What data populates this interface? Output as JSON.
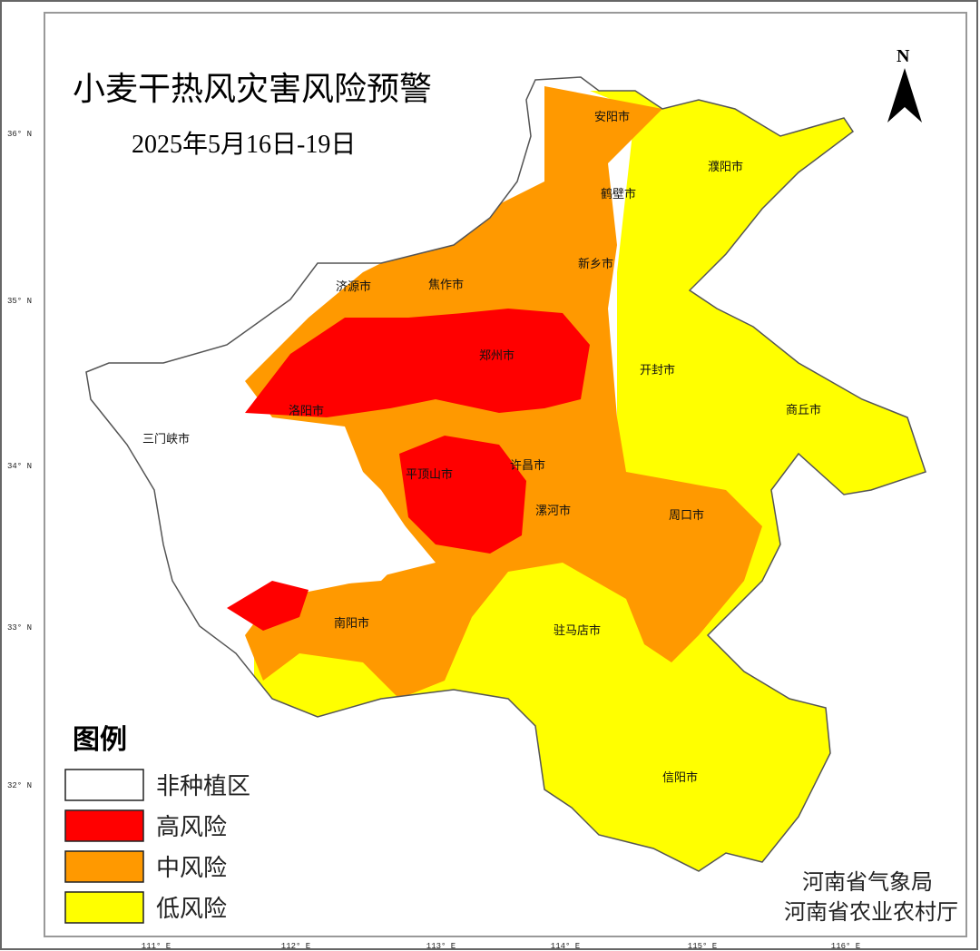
{
  "title": "小麦干热风灾害风险预警",
  "subtitle": "2025年5月16日-19日",
  "north_label": "N",
  "legend": {
    "title": "图例",
    "items": [
      {
        "label": "非种植区",
        "color": "#ffffff"
      },
      {
        "label": "高风险",
        "color": "#ff0000"
      },
      {
        "label": "中风险",
        "color": "#ff9900"
      },
      {
        "label": "低风险",
        "color": "#ffff00"
      }
    ]
  },
  "credits": [
    "河南省气象局",
    "河南省农业农村厅"
  ],
  "lon_ticks": [
    "111° E",
    "112° E",
    "113° E",
    "114° E",
    "115° E",
    "116° E"
  ],
  "lat_ticks": [
    "36° N",
    "35° N",
    "34° N",
    "33° N",
    "32° N"
  ],
  "cities": [
    "安阳市",
    "濮阳市",
    "鹤壁市",
    "新乡市",
    "焦作市",
    "济源市",
    "郑州市",
    "开封市",
    "商丘市",
    "洛阳市",
    "三门峡市",
    "平顶山市",
    "许昌市",
    "漯河市",
    "周口市",
    "南阳市",
    "驻马店市",
    "信阳市"
  ]
}
